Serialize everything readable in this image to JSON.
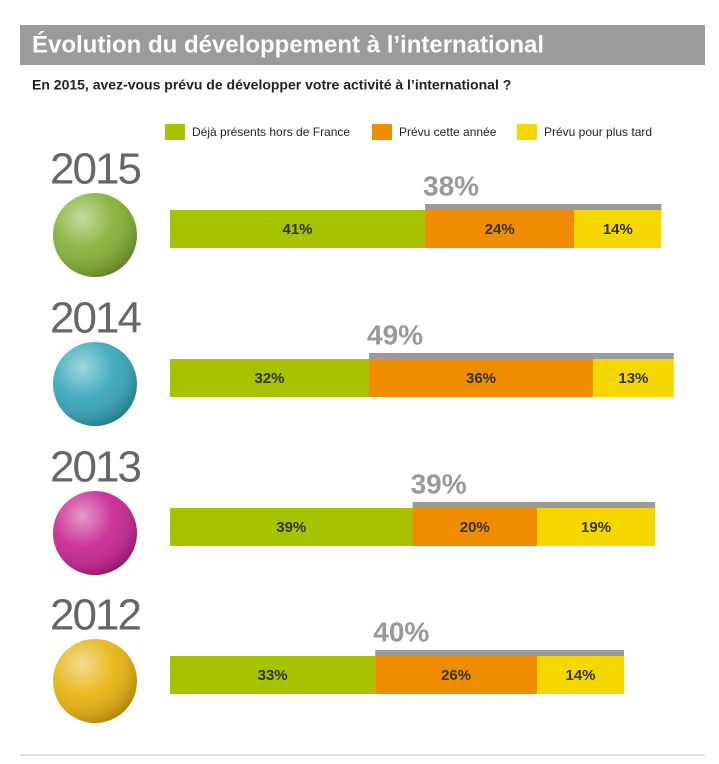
{
  "chart_data": {
    "type": "stacked-bar",
    "title": "Évolution du développement à l’international",
    "subtitle": "En 2015, avez-vous prévu de développer votre activité à l’international ?",
    "categories": [
      "2015",
      "2014",
      "2013",
      "2012"
    ],
    "series": [
      {
        "name": "Déjà présents hors de France",
        "color": "#a9c200",
        "values": [
          41,
          32,
          39,
          33
        ],
        "value_labels": [
          "41%",
          "32%",
          "39%",
          "33%"
        ]
      },
      {
        "name": "Prévu cette année",
        "color": "#f08c00",
        "values": [
          24,
          36,
          20,
          26
        ],
        "value_labels": [
          "24%",
          "36%",
          "20%",
          "26%"
        ]
      },
      {
        "name": "Prévu pour plus tard",
        "color": "#f4d800",
        "values": [
          14,
          13,
          19,
          14
        ],
        "value_labels": [
          "14%",
          "13%",
          "19%",
          "14%"
        ]
      }
    ],
    "totals": [
      {
        "value": 38,
        "label": "38%"
      },
      {
        "value": 49,
        "label": "49%"
      },
      {
        "value": 39,
        "label": "39%"
      },
      {
        "value": 40,
        "label": "40%"
      }
    ]
  }
}
